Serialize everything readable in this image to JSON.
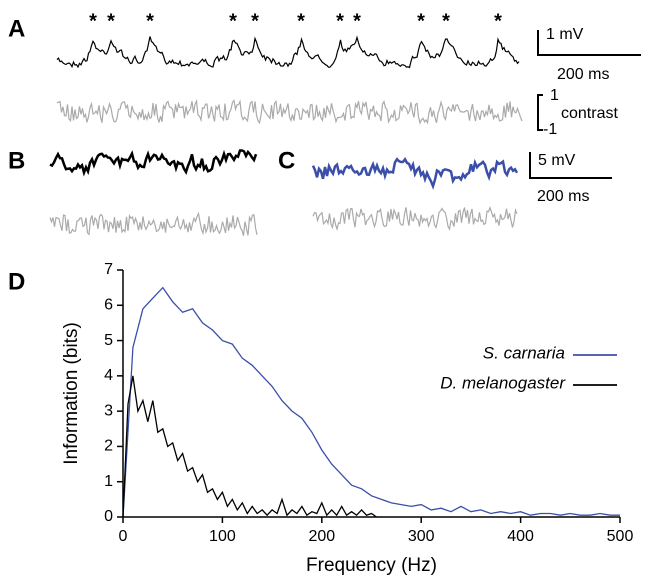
{
  "panels": {
    "a": "A",
    "b": "B",
    "c": "C",
    "d": "D"
  },
  "panel_a": {
    "peak_marker": "*",
    "voltage_bar": "1 mV",
    "time_bar": "200 ms",
    "contrast_top": "1",
    "contrast_bottom": "-1",
    "contrast_label": "contrast"
  },
  "panel_c": {
    "voltage_bar": "5 mV",
    "time_bar": "200 ms"
  },
  "chart_data": {
    "type": "line",
    "xlabel": "Frequency (Hz)",
    "ylabel": "Information (bits)",
    "xlim": [
      0,
      500
    ],
    "ylim": [
      0,
      7
    ],
    "xticks": [
      0,
      100,
      200,
      300,
      400,
      500
    ],
    "yticks": [
      0,
      1,
      2,
      3,
      4,
      5,
      6,
      7
    ],
    "legend": "right",
    "series": [
      {
        "name": "S. carnaria",
        "color": "#3b4fa8",
        "x": [
          0,
          10,
          20,
          30,
          40,
          50,
          60,
          70,
          80,
          90,
          100,
          110,
          120,
          130,
          140,
          150,
          160,
          170,
          180,
          190,
          200,
          210,
          220,
          230,
          240,
          250,
          260,
          270,
          280,
          290,
          300,
          310,
          320,
          330,
          340,
          350,
          360,
          370,
          380,
          390,
          400,
          410,
          420,
          430,
          440,
          450,
          460,
          470,
          480,
          490,
          500
        ],
        "values": [
          0,
          4.8,
          5.9,
          6.2,
          6.5,
          6.1,
          5.8,
          5.9,
          5.5,
          5.3,
          5.0,
          4.9,
          4.5,
          4.3,
          4.0,
          3.7,
          3.3,
          3.0,
          2.8,
          2.4,
          1.9,
          1.5,
          1.2,
          0.9,
          0.8,
          0.6,
          0.5,
          0.4,
          0.35,
          0.3,
          0.35,
          0.2,
          0.25,
          0.15,
          0.3,
          0.15,
          0.2,
          0.1,
          0.15,
          0.1,
          0.15,
          0.05,
          0.1,
          0.1,
          0.05,
          0.1,
          0.05,
          0.05,
          0.1,
          0.05,
          0.05
        ]
      },
      {
        "name": "D. melanogaster",
        "color": "#000000",
        "x": [
          0,
          5,
          10,
          15,
          20,
          25,
          30,
          35,
          40,
          45,
          50,
          55,
          60,
          65,
          70,
          75,
          80,
          85,
          90,
          95,
          100,
          105,
          110,
          115,
          120,
          125,
          130,
          135,
          140,
          145,
          150,
          155,
          160,
          165,
          170,
          175,
          180,
          185,
          190,
          195,
          200,
          205,
          210,
          215,
          220,
          225,
          230,
          235,
          240,
          245,
          250,
          255
        ],
        "values": [
          0,
          3.2,
          4.0,
          3.0,
          3.3,
          2.7,
          3.3,
          2.4,
          2.5,
          2.0,
          2.1,
          1.6,
          1.8,
          1.3,
          1.4,
          1.0,
          1.2,
          0.7,
          0.8,
          0.5,
          0.7,
          0.3,
          0.5,
          0.2,
          0.4,
          0.1,
          0.3,
          0.1,
          0.2,
          0.05,
          0.2,
          0.1,
          0.5,
          0.05,
          0.2,
          0.1,
          0.3,
          0.05,
          0.15,
          0.1,
          0.4,
          0.05,
          0.2,
          0.05,
          0.3,
          0.05,
          0.15,
          0.05,
          0.2,
          0.05,
          0.1,
          0
        ]
      }
    ]
  }
}
